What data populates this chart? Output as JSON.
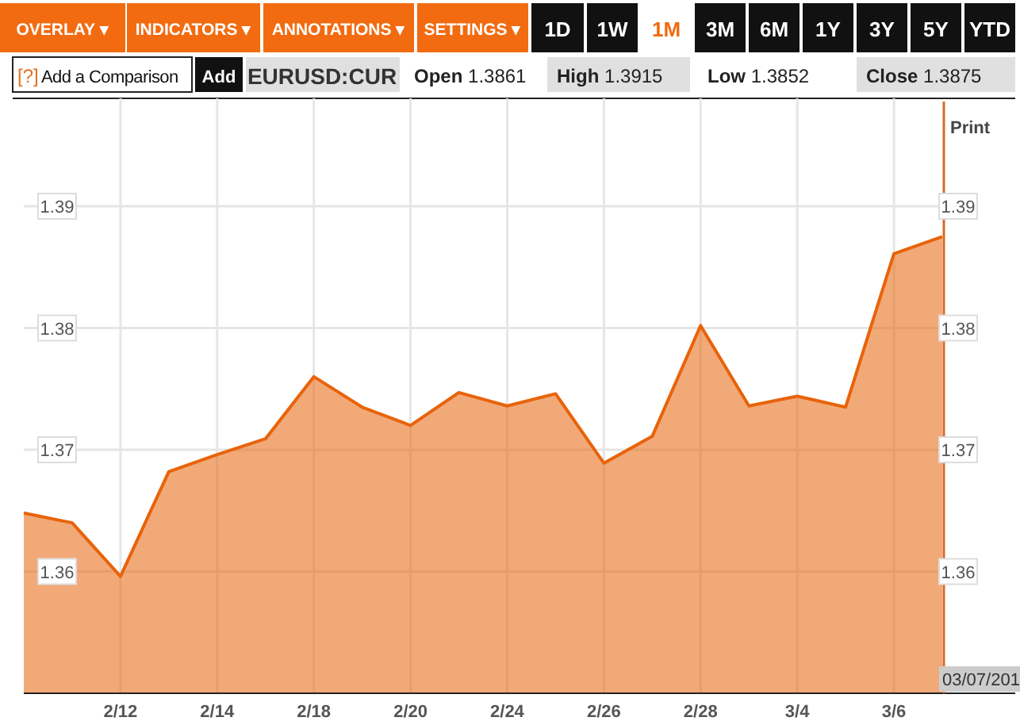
{
  "chart_data": {
    "type": "area",
    "title": "EURUSD:CUR",
    "categories": [
      null,
      null,
      "2/12",
      null,
      "2/14",
      null,
      "2/18",
      null,
      "2/20",
      null,
      "2/24",
      null,
      "2/26",
      null,
      "2/28",
      null,
      "3/4",
      null,
      "3/6",
      null
    ],
    "series": [
      {
        "color": "#e8630a",
        "values": [
          1.3648,
          1.364,
          1.3596,
          1.3682,
          1.3696,
          1.3709,
          1.376,
          1.3735,
          1.372,
          1.3747,
          1.3736,
          1.3746,
          1.3689,
          1.3711,
          1.3802,
          1.3736,
          1.3744,
          1.3735,
          1.3861,
          1.3875
        ]
      }
    ],
    "ylim": [
      1.35,
      1.3986
    ],
    "yticks": [
      1.36,
      1.37,
      1.38,
      1.39
    ],
    "y2lim": [
      1.35,
      1.3986
    ],
    "y2ticks": [
      1.36,
      1.37,
      1.38,
      1.39
    ],
    "grid": true,
    "annotations": [
      "OVERLAY ▾",
      "INDICATORS ▾",
      "ANNOTATIONS ▾",
      "SETTINGS ▾",
      "1D",
      "1W",
      "1M",
      "3M",
      "6M",
      "1Y",
      "3Y",
      "5Y",
      "YTD",
      "[?]",
      "Add a Comparison",
      "Add",
      "Open 1.3861",
      "High 1.3915",
      "Low 1.3852",
      "Close 1.3875",
      "Print",
      "03/07/201"
    ]
  }
}
